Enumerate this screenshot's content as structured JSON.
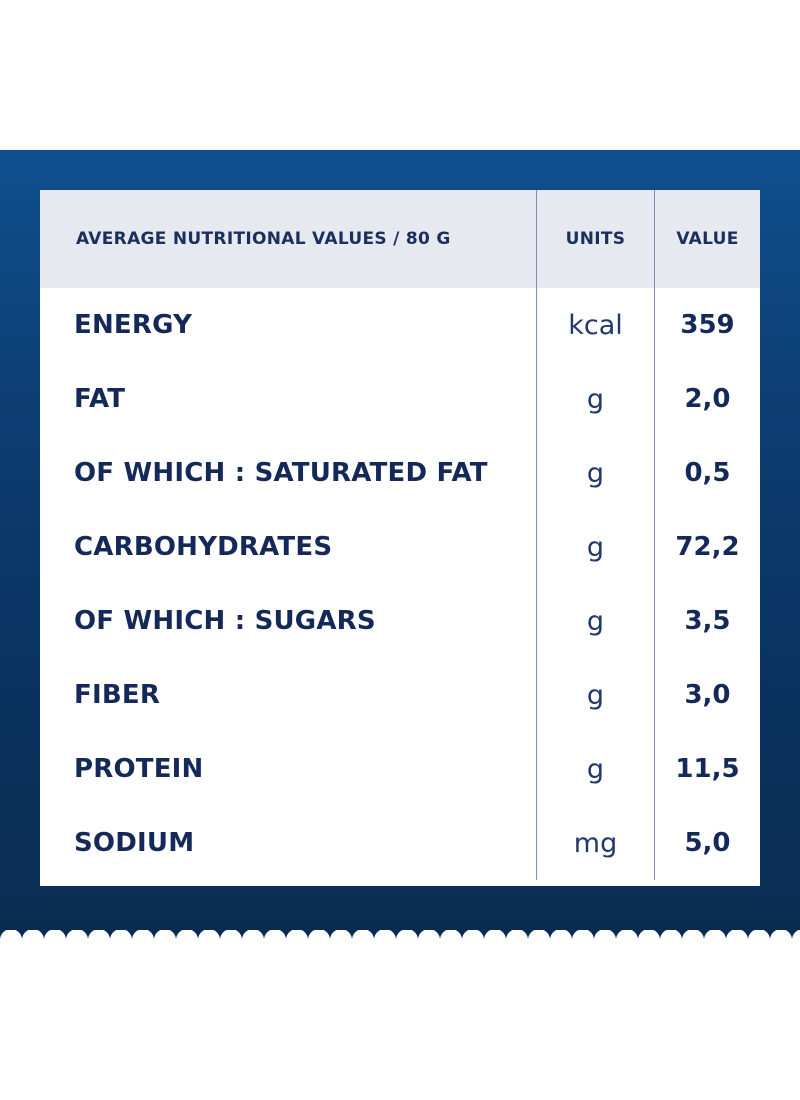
{
  "header": {
    "nutrient": "AVERAGE NUTRITIONAL VALUES / 80 G",
    "units": "UNITS",
    "value": "VALUE"
  },
  "rows": [
    {
      "name": "ENERGY",
      "unit": "kcal",
      "value": "359"
    },
    {
      "name": "FAT",
      "unit": "g",
      "value": "2,0"
    },
    {
      "name": "OF WHICH : SATURATED FAT",
      "unit": "g",
      "value": "0,5"
    },
    {
      "name": "CARBOHYDRATES",
      "unit": "g",
      "value": "72,2"
    },
    {
      "name": "OF WHICH : SUGARS",
      "unit": "g",
      "value": "3,5"
    },
    {
      "name": "FIBER",
      "unit": "g",
      "value": "3,0"
    },
    {
      "name": "PROTEIN",
      "unit": "g",
      "value": "11,5"
    },
    {
      "name": "SODIUM",
      "unit": "mg",
      "value": "5,0"
    }
  ],
  "colors": {
    "panel_top": "#0f4f8f",
    "panel_bottom": "#0a2c52",
    "header_bg": "#e6e9ef",
    "text": "#14295a",
    "divider": "#7f8fb0"
  }
}
